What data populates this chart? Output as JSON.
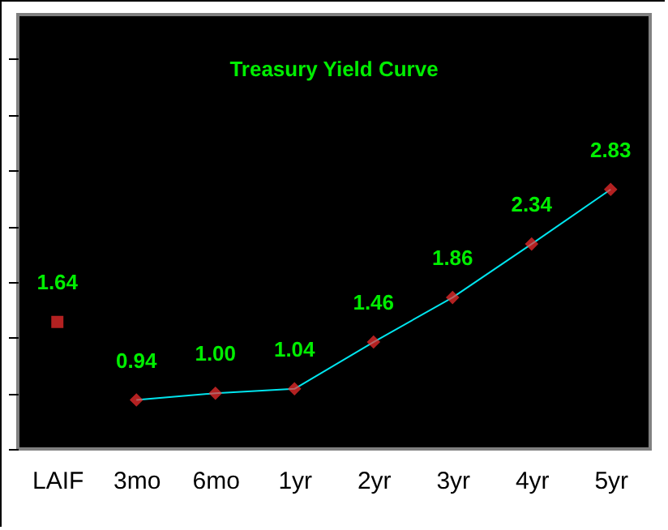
{
  "chart_data": {
    "type": "line",
    "title": "Treasury Yield Curve",
    "categories": [
      "LAIF",
      "3mo",
      "6mo",
      "1yr",
      "2yr",
      "3yr",
      "4yr",
      "5yr"
    ],
    "series": [
      {
        "type": "scatter",
        "color": "#ff3030",
        "marker": "square",
        "values": [
          1.64,
          null,
          null,
          null,
          null,
          null,
          null,
          null
        ],
        "value_labels": [
          "1.64",
          null,
          null,
          null,
          null,
          null,
          null,
          null
        ]
      },
      {
        "color": "#00e5ee",
        "marker": "diamond",
        "line_style": "solid",
        "values": [
          null,
          0.94,
          1.0,
          1.04,
          1.46,
          1.86,
          2.34,
          2.83
        ],
        "value_labels": [
          null,
          "0.94",
          "1.00",
          "1.04",
          "1.46",
          "1.86",
          "2.34",
          "2.83"
        ]
      }
    ],
    "ylim": [
      0.5,
      4.4
    ],
    "yticks": [
      {
        "value": 0.5,
        "label": null
      },
      {
        "value": 1,
        "label": null
      },
      {
        "value": 1.5,
        "label": null
      },
      {
        "value": 2,
        "label": null
      },
      {
        "value": 2.5,
        "label": null
      },
      {
        "value": 3,
        "label": null
      },
      {
        "value": 3.5,
        "label": null
      },
      {
        "value": 4,
        "label": null
      }
    ],
    "tick_labels": "x",
    "grid": false
  }
}
